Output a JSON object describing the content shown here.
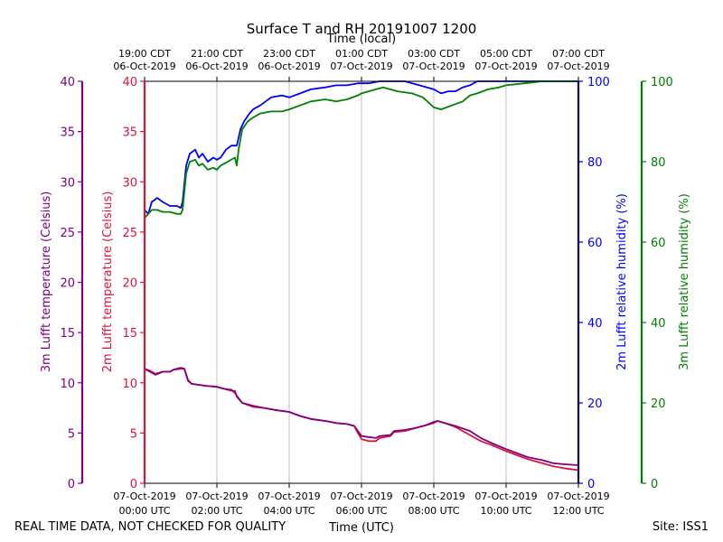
{
  "chart_data": {
    "type": "line",
    "title": "Surface T and RH 20191007 1200",
    "top_axis_label": "Time (local)",
    "bottom_axis_label": "Time (UTC)",
    "footer_left": "REAL TIME DATA, NOT CHECKED FOR QUALITY",
    "footer_right": "Site: ISS1",
    "x_range_hours": [
      0,
      12
    ],
    "bottom_ticks": [
      {
        "hour": 0,
        "line1": "07-Oct-2019",
        "line2": "00:00 UTC"
      },
      {
        "hour": 2,
        "line1": "07-Oct-2019",
        "line2": "02:00 UTC"
      },
      {
        "hour": 4,
        "line1": "07-Oct-2019",
        "line2": "04:00 UTC"
      },
      {
        "hour": 6,
        "line1": "07-Oct-2019",
        "line2": "06:00 UTC"
      },
      {
        "hour": 8,
        "line1": "07-Oct-2019",
        "line2": "08:00 UTC"
      },
      {
        "hour": 10,
        "line1": "07-Oct-2019",
        "line2": "10:00 UTC"
      },
      {
        "hour": 12,
        "line1": "07-Oct-2019",
        "line2": "12:00 UTC"
      }
    ],
    "top_ticks": [
      {
        "hour": 0,
        "line1": "19:00 CDT",
        "line2": "06-Oct-2019"
      },
      {
        "hour": 2,
        "line1": "21:00 CDT",
        "line2": "06-Oct-2019"
      },
      {
        "hour": 4,
        "line1": "23:00 CDT",
        "line2": "06-Oct-2019"
      },
      {
        "hour": 6,
        "line1": "01:00 CDT",
        "line2": "07-Oct-2019"
      },
      {
        "hour": 8,
        "line1": "03:00 CDT",
        "line2": "07-Oct-2019"
      },
      {
        "hour": 10,
        "line1": "05:00 CDT",
        "line2": "07-Oct-2019"
      },
      {
        "hour": 12,
        "line1": "07:00 CDT",
        "line2": "07-Oct-2019"
      }
    ],
    "axes": {
      "t3m": {
        "label": "3m Lufft temperature (Celsius)",
        "ylim": [
          0,
          40
        ],
        "ticks": [
          0,
          5,
          10,
          15,
          20,
          25,
          30,
          35,
          40
        ],
        "color": "#800080",
        "side": "left-outer"
      },
      "t2m": {
        "label": "2m Lufft temperature (Celsius)",
        "ylim": [
          0,
          40
        ],
        "ticks": [
          0,
          5,
          10,
          15,
          20,
          25,
          30,
          35,
          40
        ],
        "color": "#dc143c",
        "side": "left"
      },
      "rh2m": {
        "label": "2m Lufft relative humidity (%)",
        "ylim": [
          0,
          100
        ],
        "ticks": [
          0,
          20,
          40,
          60,
          80,
          100
        ],
        "color": "#0000ff",
        "axis_color": "#00008b",
        "side": "right"
      },
      "rh3m": {
        "label": "3m Lufft relative humidity (%)",
        "ylim": [
          0,
          100
        ],
        "ticks": [
          0,
          20,
          40,
          60,
          80,
          100
        ],
        "color": "#008000",
        "side": "right-outer"
      }
    },
    "series": [
      {
        "name": "2m RH",
        "axis": "rh2m",
        "color": "#0000ff",
        "points": [
          [
            0,
            68
          ],
          [
            0.1,
            67
          ],
          [
            0.2,
            70
          ],
          [
            0.35,
            71
          ],
          [
            0.5,
            70
          ],
          [
            0.7,
            69
          ],
          [
            0.9,
            69
          ],
          [
            1.0,
            68.5
          ],
          [
            1.05,
            70
          ],
          [
            1.15,
            79
          ],
          [
            1.25,
            82
          ],
          [
            1.4,
            83
          ],
          [
            1.5,
            81
          ],
          [
            1.6,
            82
          ],
          [
            1.75,
            80
          ],
          [
            1.9,
            81
          ],
          [
            2.0,
            80.5
          ],
          [
            2.1,
            81
          ],
          [
            2.25,
            83
          ],
          [
            2.4,
            84
          ],
          [
            2.55,
            84
          ],
          [
            2.6,
            86
          ],
          [
            2.65,
            88
          ],
          [
            2.75,
            90
          ],
          [
            2.9,
            92
          ],
          [
            3.0,
            93
          ],
          [
            3.2,
            94
          ],
          [
            3.5,
            96
          ],
          [
            3.8,
            96.5
          ],
          [
            4.0,
            96
          ],
          [
            4.3,
            97
          ],
          [
            4.6,
            98
          ],
          [
            5.0,
            98.5
          ],
          [
            5.3,
            99
          ],
          [
            5.6,
            99
          ],
          [
            5.9,
            99.5
          ],
          [
            6.2,
            99.5
          ],
          [
            6.5,
            100
          ],
          [
            6.8,
            100
          ],
          [
            7.2,
            100
          ],
          [
            7.6,
            99
          ],
          [
            8.0,
            98
          ],
          [
            8.2,
            97
          ],
          [
            8.4,
            97.5
          ],
          [
            8.6,
            97.5
          ],
          [
            8.8,
            98.5
          ],
          [
            9.0,
            99
          ],
          [
            9.2,
            100
          ],
          [
            9.5,
            100
          ],
          [
            10.0,
            100
          ],
          [
            10.5,
            100
          ],
          [
            11.0,
            100
          ],
          [
            11.5,
            100
          ],
          [
            12.0,
            100
          ]
        ]
      },
      {
        "name": "3m RH",
        "axis": "rh3m",
        "color": "#008000",
        "points": [
          [
            0,
            66
          ],
          [
            0.1,
            67
          ],
          [
            0.2,
            68
          ],
          [
            0.35,
            68
          ],
          [
            0.5,
            67.5
          ],
          [
            0.7,
            67.5
          ],
          [
            0.9,
            67
          ],
          [
            1.0,
            67
          ],
          [
            1.05,
            68
          ],
          [
            1.15,
            77
          ],
          [
            1.25,
            80
          ],
          [
            1.4,
            80.5
          ],
          [
            1.5,
            79
          ],
          [
            1.6,
            79.5
          ],
          [
            1.75,
            78
          ],
          [
            1.9,
            78.5
          ],
          [
            2.0,
            78
          ],
          [
            2.1,
            79
          ],
          [
            2.3,
            80
          ],
          [
            2.5,
            81
          ],
          [
            2.55,
            79
          ],
          [
            2.6,
            83
          ],
          [
            2.7,
            88
          ],
          [
            2.85,
            90
          ],
          [
            3.0,
            91
          ],
          [
            3.2,
            92
          ],
          [
            3.5,
            92.5
          ],
          [
            3.8,
            92.5
          ],
          [
            4.0,
            93
          ],
          [
            4.3,
            94
          ],
          [
            4.6,
            95
          ],
          [
            5.0,
            95.5
          ],
          [
            5.3,
            95
          ],
          [
            5.6,
            95.5
          ],
          [
            5.9,
            96.5
          ],
          [
            6.0,
            97
          ],
          [
            6.2,
            97.5
          ],
          [
            6.4,
            98
          ],
          [
            6.6,
            98.5
          ],
          [
            7.0,
            97.5
          ],
          [
            7.4,
            97
          ],
          [
            7.7,
            96
          ],
          [
            8.0,
            93.5
          ],
          [
            8.2,
            93
          ],
          [
            8.5,
            94
          ],
          [
            8.8,
            95
          ],
          [
            9.0,
            96.5
          ],
          [
            9.2,
            97
          ],
          [
            9.5,
            98
          ],
          [
            9.8,
            98.5
          ],
          [
            10.0,
            99
          ],
          [
            10.5,
            99.5
          ],
          [
            11.0,
            100
          ],
          [
            11.5,
            100
          ],
          [
            12.0,
            100
          ]
        ]
      },
      {
        "name": "2m T",
        "axis": "t2m",
        "color": "#dc143c",
        "points": [
          [
            0,
            11.4
          ],
          [
            0.15,
            11.2
          ],
          [
            0.3,
            10.9
          ],
          [
            0.5,
            11.1
          ],
          [
            0.7,
            11.1
          ],
          [
            0.8,
            11.3
          ],
          [
            1.0,
            11.4
          ],
          [
            1.1,
            11.4
          ],
          [
            1.2,
            10.3
          ],
          [
            1.3,
            9.9
          ],
          [
            1.5,
            9.8
          ],
          [
            1.7,
            9.7
          ],
          [
            2.0,
            9.6
          ],
          [
            2.2,
            9.4
          ],
          [
            2.4,
            9.2
          ],
          [
            2.5,
            9.2
          ],
          [
            2.55,
            8.6
          ],
          [
            2.7,
            8.0
          ],
          [
            3.0,
            7.6
          ],
          [
            3.3,
            7.5
          ],
          [
            3.6,
            7.3
          ],
          [
            4.0,
            7.1
          ],
          [
            4.3,
            6.7
          ],
          [
            4.6,
            6.4
          ],
          [
            5.0,
            6.2
          ],
          [
            5.3,
            6.0
          ],
          [
            5.6,
            5.9
          ],
          [
            5.8,
            5.7
          ],
          [
            5.9,
            5.0
          ],
          [
            6.0,
            4.4
          ],
          [
            6.2,
            4.2
          ],
          [
            6.4,
            4.2
          ],
          [
            6.5,
            4.5
          ],
          [
            6.8,
            4.7
          ],
          [
            6.9,
            5.1
          ],
          [
            7.2,
            5.2
          ],
          [
            7.5,
            5.5
          ],
          [
            7.8,
            5.8
          ],
          [
            8.0,
            6.0
          ],
          [
            8.1,
            6.2
          ],
          [
            8.3,
            6.0
          ],
          [
            8.6,
            5.6
          ],
          [
            9.0,
            4.8
          ],
          [
            9.3,
            4.2
          ],
          [
            9.6,
            3.8
          ],
          [
            10.0,
            3.2
          ],
          [
            10.3,
            2.8
          ],
          [
            10.6,
            2.4
          ],
          [
            11.0,
            2.0
          ],
          [
            11.3,
            1.7
          ],
          [
            11.6,
            1.5
          ],
          [
            12.0,
            1.3
          ]
        ]
      },
      {
        "name": "3m T",
        "axis": "t3m",
        "color": "#800080",
        "points": [
          [
            0,
            11.4
          ],
          [
            0.15,
            11.1
          ],
          [
            0.3,
            10.8
          ],
          [
            0.5,
            11.1
          ],
          [
            0.7,
            11.1
          ],
          [
            0.8,
            11.3
          ],
          [
            1.0,
            11.5
          ],
          [
            1.1,
            11.4
          ],
          [
            1.2,
            10.2
          ],
          [
            1.3,
            9.9
          ],
          [
            1.5,
            9.8
          ],
          [
            1.7,
            9.7
          ],
          [
            2.0,
            9.6
          ],
          [
            2.2,
            9.4
          ],
          [
            2.4,
            9.3
          ],
          [
            2.5,
            9.0
          ],
          [
            2.55,
            8.7
          ],
          [
            2.7,
            8.0
          ],
          [
            3.0,
            7.7
          ],
          [
            3.3,
            7.5
          ],
          [
            3.6,
            7.3
          ],
          [
            4.0,
            7.1
          ],
          [
            4.3,
            6.7
          ],
          [
            4.6,
            6.4
          ],
          [
            5.0,
            6.2
          ],
          [
            5.3,
            6.0
          ],
          [
            5.6,
            5.9
          ],
          [
            5.8,
            5.7
          ],
          [
            5.9,
            5.2
          ],
          [
            6.0,
            4.7
          ],
          [
            6.2,
            4.6
          ],
          [
            6.4,
            4.5
          ],
          [
            6.5,
            4.7
          ],
          [
            6.8,
            4.8
          ],
          [
            6.9,
            5.2
          ],
          [
            7.2,
            5.3
          ],
          [
            7.5,
            5.5
          ],
          [
            7.8,
            5.8
          ],
          [
            8.0,
            6.1
          ],
          [
            8.1,
            6.2
          ],
          [
            8.3,
            6.0
          ],
          [
            8.6,
            5.7
          ],
          [
            9.0,
            5.2
          ],
          [
            9.3,
            4.5
          ],
          [
            9.6,
            4.0
          ],
          [
            10.0,
            3.4
          ],
          [
            10.3,
            3.0
          ],
          [
            10.6,
            2.6
          ],
          [
            11.0,
            2.3
          ],
          [
            11.3,
            2.0
          ],
          [
            11.6,
            1.9
          ],
          [
            12.0,
            1.8
          ]
        ]
      }
    ]
  }
}
